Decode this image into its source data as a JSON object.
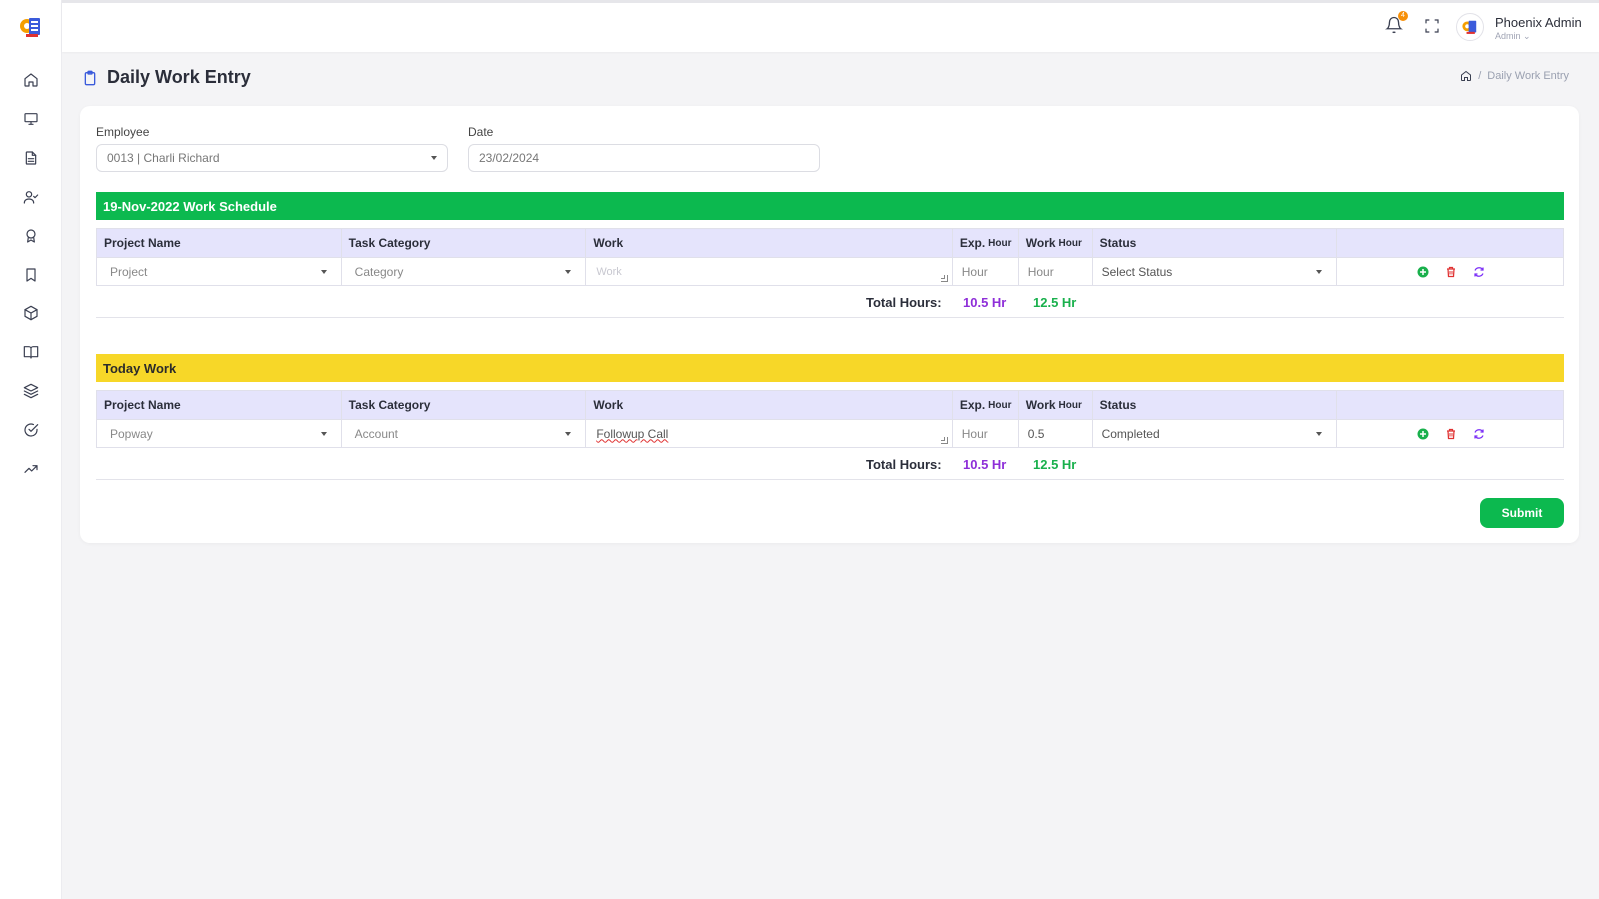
{
  "header": {
    "notification_count": "4",
    "user_name": "Phoenix Admin",
    "user_role": "Admin"
  },
  "page": {
    "title": "Daily Work Entry",
    "breadcrumb_current": "Daily Work Entry",
    "breadcrumb_separator": "/"
  },
  "filters": {
    "employee_label": "Employee",
    "employee_value": "0013 | Charli Richard",
    "date_label": "Date",
    "date_value": "23/02/2024"
  },
  "schedule": {
    "title": "19-Nov-2022 Work Schedule",
    "headers": {
      "project": "Project Name",
      "category": "Task Category",
      "work": "Work",
      "exp_main": "Exp.",
      "exp_sub": "Hour",
      "work_hour_main": "Work",
      "work_hour_sub": "Hour",
      "status": "Status"
    },
    "row": {
      "project": "Project",
      "category": "Category",
      "work": "Work",
      "exp_hour": "Hour",
      "work_hour": "Hour",
      "status": "Select Status"
    },
    "total_label": "Total Hours:",
    "total_exp": "10.5 Hr",
    "total_work": "12.5 Hr"
  },
  "today": {
    "title": "Today Work",
    "headers": {
      "project": "Project Name",
      "category": "Task Category",
      "work": "Work",
      "exp_main": "Exp.",
      "exp_sub": "Hour",
      "work_hour_main": "Work",
      "work_hour_sub": "Hour",
      "status": "Status"
    },
    "row": {
      "project": "Popway",
      "category": "Account",
      "work": "Followup Call",
      "exp_hour": "Hour",
      "work_hour": "0.5",
      "status": "Completed"
    },
    "total_label": "Total Hours:",
    "total_exp": "10.5 Hr",
    "total_work": "12.5 Hr"
  },
  "submit_label": "Submit",
  "sidebar_icons": [
    "home-icon",
    "monitor-icon",
    "document-icon",
    "user-check-icon",
    "award-icon",
    "bookmark-icon",
    "box-icon",
    "book-icon",
    "layers-icon",
    "check-circle-icon",
    "trending-up-icon"
  ],
  "colors": {
    "green": "#0cb94f",
    "yellow": "#f7d728",
    "header_row": "#e5e4fc",
    "exp_total": "#8e2ed8",
    "work_total": "#19b04c",
    "delete": "#e03131",
    "refresh": "#7b2ff7"
  }
}
